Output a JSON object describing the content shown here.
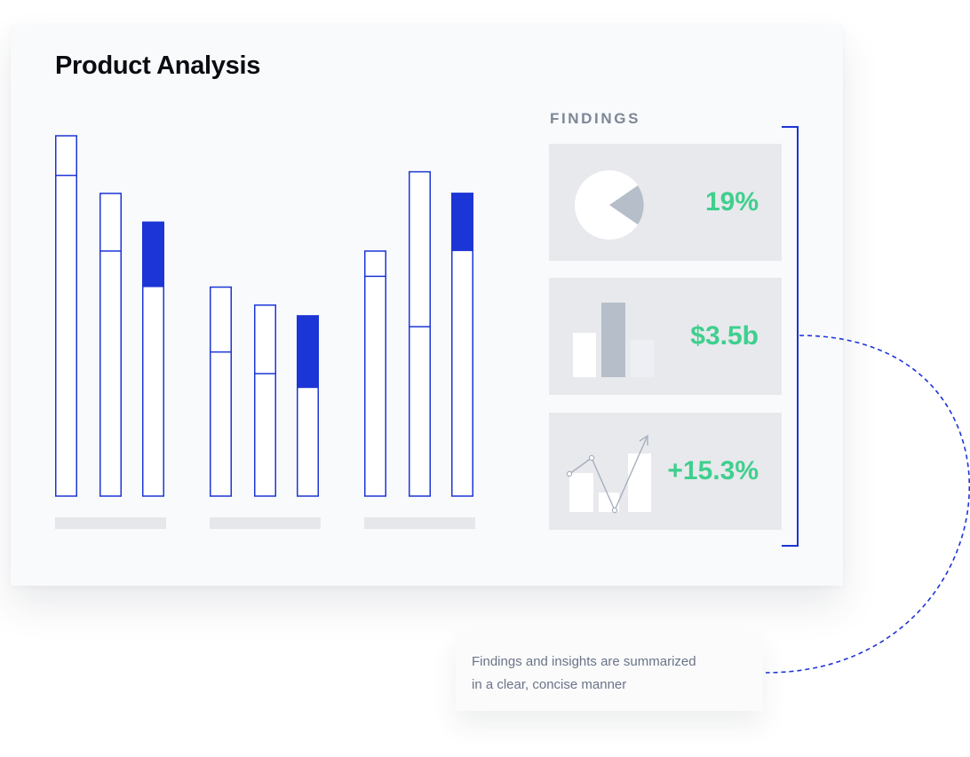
{
  "title": "Product Analysis",
  "colors": {
    "accent": "#1c35d6",
    "value": "#3fcf8e",
    "panel": "#e8e9ed",
    "muted": "#b5bec9"
  },
  "chart_data": {
    "type": "bar",
    "stacked": true,
    "groups": 3,
    "bars_per_group": 3,
    "values_total": [
      100,
      84,
      76,
      58,
      53,
      50,
      68,
      90,
      84
    ],
    "values_top_segment": [
      11,
      16,
      18,
      18,
      19,
      20,
      7,
      43,
      16
    ],
    "highlighted_bar_in_group": 3
  },
  "findings": {
    "heading": "FINDINGS",
    "items": [
      {
        "icon": "pie-chart-icon",
        "value": "19%"
      },
      {
        "icon": "bar-chart-icon",
        "value": "$3.5b"
      },
      {
        "icon": "trend-chart-icon",
        "value": "+15.3%"
      }
    ]
  },
  "note": {
    "line1": "Findings and insights are summarized",
    "line2": "in a clear, concise manner"
  }
}
